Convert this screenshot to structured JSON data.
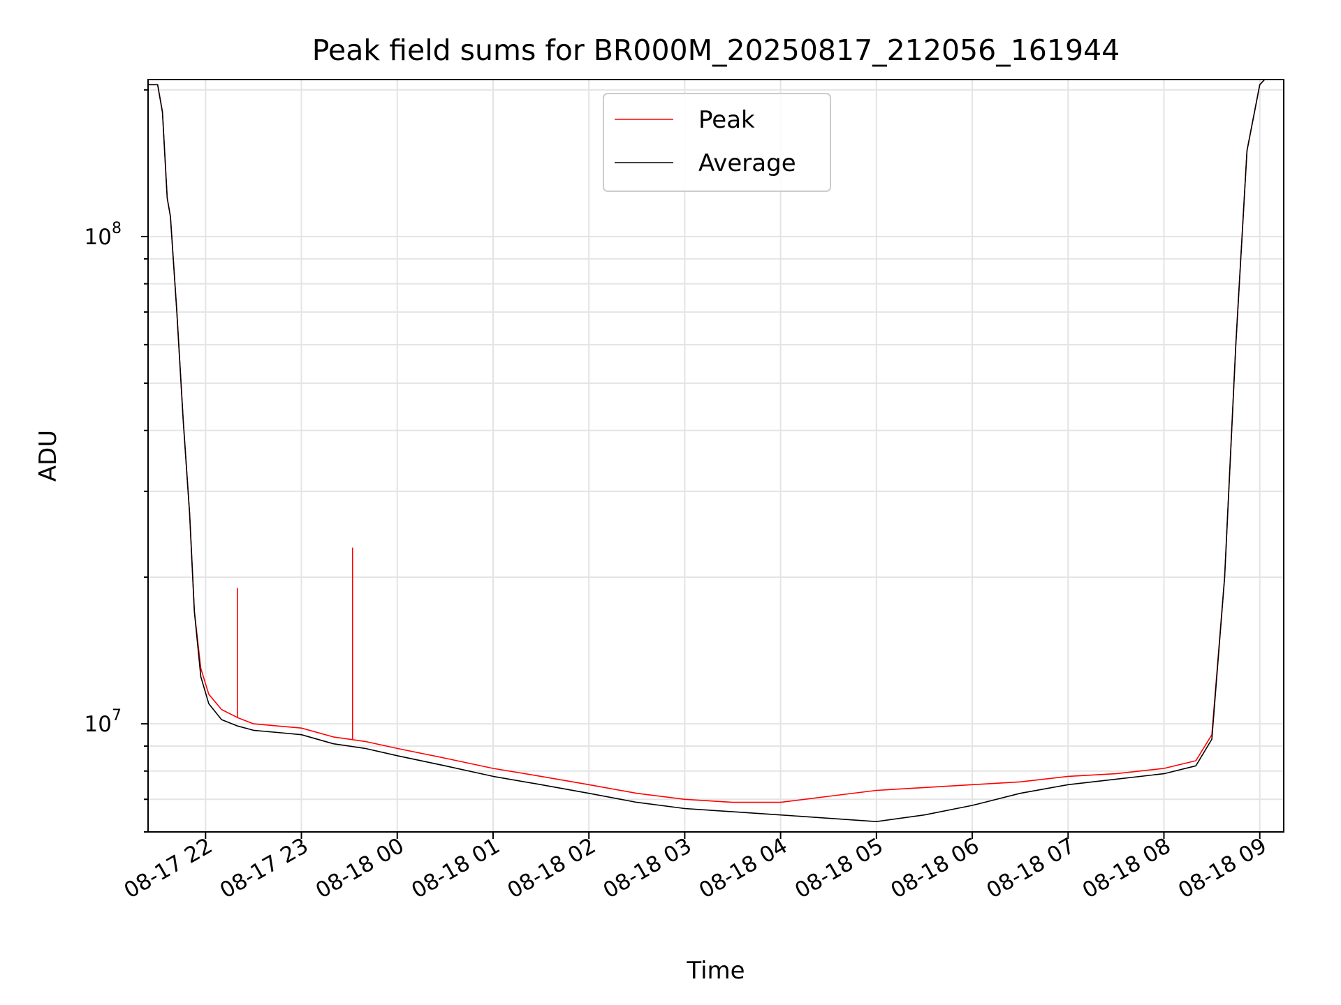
{
  "chart_data": {
    "type": "line",
    "title": "Peak field sums for BR000M_20250817_212056_161944",
    "xlabel": "Time",
    "ylabel": "ADU",
    "yscale": "log",
    "grid": true,
    "legend_position": "top-center",
    "xlim": [
      "2025-08-17 21:24",
      "2025-08-18 09:15"
    ],
    "ylim": [
      6000000,
      210000000
    ],
    "x_ticks": [
      "08-17 22",
      "08-17 23",
      "08-18 00",
      "08-18 01",
      "08-18 02",
      "08-18 03",
      "08-18 04",
      "08-18 05",
      "08-18 06",
      "08-18 07",
      "08-18 08",
      "08-18 09"
    ],
    "x_tick_values": [
      "2025-08-17 22:00",
      "2025-08-17 23:00",
      "2025-08-18 00:00",
      "2025-08-18 01:00",
      "2025-08-18 02:00",
      "2025-08-18 03:00",
      "2025-08-18 04:00",
      "2025-08-18 05:00",
      "2025-08-18 06:00",
      "2025-08-18 07:00",
      "2025-08-18 08:00",
      "2025-08-18 09:00"
    ],
    "y_ticks": [
      {
        "value": 10000000,
        "base": "10",
        "exp": "7"
      },
      {
        "value": 100000000,
        "base": "10",
        "exp": "8"
      }
    ],
    "series": [
      {
        "name": "Peak",
        "color": "#ff0000",
        "points": [
          [
            "2025-08-17 21:21",
            205000000
          ],
          [
            "2025-08-17 21:30",
            205000000
          ],
          [
            "2025-08-17 21:33",
            180000000
          ],
          [
            "2025-08-17 21:36",
            120000000
          ],
          [
            "2025-08-17 21:38",
            110000000
          ],
          [
            "2025-08-17 21:42",
            70000000
          ],
          [
            "2025-08-17 21:46",
            42000000
          ],
          [
            "2025-08-17 21:50",
            27000000
          ],
          [
            "2025-08-17 21:53",
            17000000
          ],
          [
            "2025-08-17 21:57",
            13000000
          ],
          [
            "2025-08-17 22:02",
            11500000
          ],
          [
            "2025-08-17 22:10",
            10700000
          ],
          [
            "2025-08-17 22:20",
            10300000
          ],
          [
            "2025-08-17 22:30",
            10000000
          ],
          [
            "2025-08-17 22:45",
            9900000
          ],
          [
            "2025-08-17 23:00",
            9800000
          ],
          [
            "2025-08-17 23:20",
            9400000
          ],
          [
            "2025-08-17 23:40",
            9200000
          ],
          [
            "2025-08-18 00:00",
            8900000
          ],
          [
            "2025-08-18 00:30",
            8500000
          ],
          [
            "2025-08-18 01:00",
            8100000
          ],
          [
            "2025-08-18 01:30",
            7800000
          ],
          [
            "2025-08-18 02:00",
            7500000
          ],
          [
            "2025-08-18 02:30",
            7200000
          ],
          [
            "2025-08-18 03:00",
            7000000
          ],
          [
            "2025-08-18 03:30",
            6900000
          ],
          [
            "2025-08-18 04:00",
            6900000
          ],
          [
            "2025-08-18 04:30",
            7100000
          ],
          [
            "2025-08-18 05:00",
            7300000
          ],
          [
            "2025-08-18 05:30",
            7400000
          ],
          [
            "2025-08-18 06:00",
            7500000
          ],
          [
            "2025-08-18 06:30",
            7600000
          ],
          [
            "2025-08-18 07:00",
            7800000
          ],
          [
            "2025-08-18 07:30",
            7900000
          ],
          [
            "2025-08-18 08:00",
            8100000
          ],
          [
            "2025-08-18 08:20",
            8400000
          ],
          [
            "2025-08-18 08:30",
            9500000
          ],
          [
            "2025-08-18 08:38",
            20000000
          ],
          [
            "2025-08-18 08:45",
            60000000
          ],
          [
            "2025-08-18 08:52",
            150000000
          ],
          [
            "2025-08-18 09:00",
            205000000
          ],
          [
            "2025-08-18 09:03",
            210000000
          ]
        ],
        "spikes": [
          [
            "2025-08-17 22:20",
            19000000
          ],
          [
            "2025-08-17 23:32",
            23000000
          ]
        ]
      },
      {
        "name": "Average",
        "color": "#000000",
        "points": [
          [
            "2025-08-17 21:21",
            205000000
          ],
          [
            "2025-08-17 21:30",
            205000000
          ],
          [
            "2025-08-17 21:33",
            180000000
          ],
          [
            "2025-08-17 21:36",
            120000000
          ],
          [
            "2025-08-17 21:38",
            110000000
          ],
          [
            "2025-08-17 21:42",
            70000000
          ],
          [
            "2025-08-17 21:46",
            42000000
          ],
          [
            "2025-08-17 21:50",
            27000000
          ],
          [
            "2025-08-17 21:53",
            17000000
          ],
          [
            "2025-08-17 21:57",
            12500000
          ],
          [
            "2025-08-17 22:02",
            11000000
          ],
          [
            "2025-08-17 22:10",
            10200000
          ],
          [
            "2025-08-17 22:20",
            9900000
          ],
          [
            "2025-08-17 22:30",
            9700000
          ],
          [
            "2025-08-17 22:45",
            9600000
          ],
          [
            "2025-08-17 23:00",
            9500000
          ],
          [
            "2025-08-17 23:20",
            9100000
          ],
          [
            "2025-08-17 23:40",
            8900000
          ],
          [
            "2025-08-18 00:00",
            8600000
          ],
          [
            "2025-08-18 00:30",
            8200000
          ],
          [
            "2025-08-18 01:00",
            7800000
          ],
          [
            "2025-08-18 01:30",
            7500000
          ],
          [
            "2025-08-18 02:00",
            7200000
          ],
          [
            "2025-08-18 02:30",
            6900000
          ],
          [
            "2025-08-18 03:00",
            6700000
          ],
          [
            "2025-08-18 03:30",
            6600000
          ],
          [
            "2025-08-18 04:00",
            6500000
          ],
          [
            "2025-08-18 04:30",
            6400000
          ],
          [
            "2025-08-18 05:00",
            6300000
          ],
          [
            "2025-08-18 05:30",
            6500000
          ],
          [
            "2025-08-18 06:00",
            6800000
          ],
          [
            "2025-08-18 06:30",
            7200000
          ],
          [
            "2025-08-18 07:00",
            7500000
          ],
          [
            "2025-08-18 07:30",
            7700000
          ],
          [
            "2025-08-18 08:00",
            7900000
          ],
          [
            "2025-08-18 08:20",
            8200000
          ],
          [
            "2025-08-18 08:30",
            9300000
          ],
          [
            "2025-08-18 08:38",
            20000000
          ],
          [
            "2025-08-18 08:45",
            60000000
          ],
          [
            "2025-08-18 08:52",
            150000000
          ],
          [
            "2025-08-18 09:00",
            205000000
          ],
          [
            "2025-08-18 09:03",
            210000000
          ]
        ]
      }
    ]
  }
}
